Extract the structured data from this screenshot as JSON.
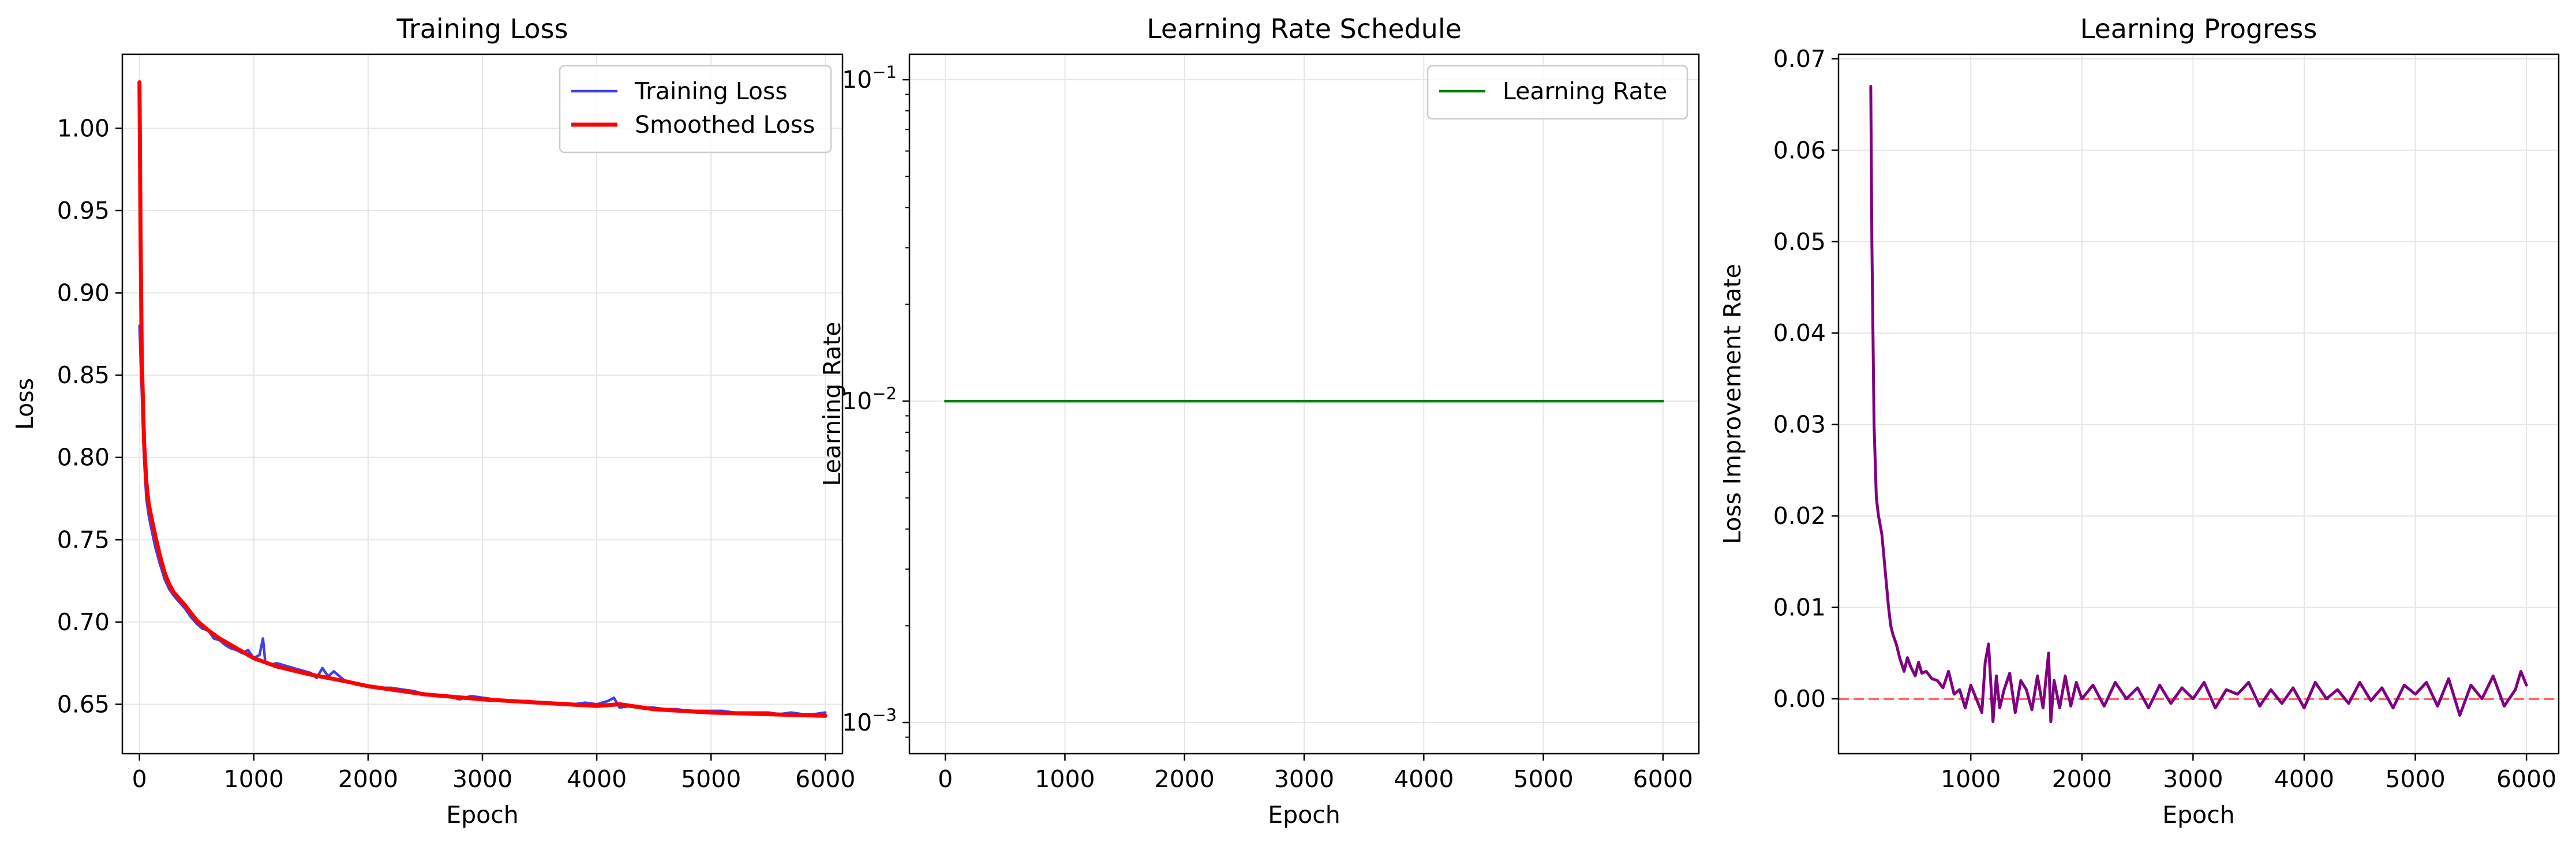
{
  "colors": {
    "training_loss": "#4040e8",
    "smoothed_loss": "#ff0000",
    "learning_rate": "#008000",
    "improvement": "#800080",
    "zero_line": "#ff6a6a",
    "grid": "#e6e6e6"
  },
  "chart_data": [
    {
      "type": "line",
      "title": "Training Loss",
      "xlabel": "Epoch",
      "ylabel": "Loss",
      "xlim": [
        -150,
        6150
      ],
      "ylim": [
        0.62,
        1.045
      ],
      "xticks": [
        0,
        1000,
        2000,
        3000,
        4000,
        5000,
        6000
      ],
      "xtick_labels": [
        "0",
        "1000",
        "2000",
        "3000",
        "4000",
        "5000",
        "6000"
      ],
      "yticks": [
        0.65,
        0.7,
        0.75,
        0.8,
        0.85,
        0.9,
        0.95,
        1.0
      ],
      "ytick_labels": [
        "0.65",
        "0.70",
        "0.75",
        "0.80",
        "0.85",
        "0.90",
        "0.95",
        "1.00"
      ],
      "grid": true,
      "legend": "top-right",
      "series": [
        {
          "name": "Training Loss",
          "x": [
            0,
            20,
            40,
            60,
            80,
            100,
            140,
            180,
            220,
            260,
            300,
            350,
            400,
            450,
            500,
            550,
            600,
            650,
            700,
            750,
            800,
            850,
            900,
            950,
            1000,
            1050,
            1080,
            1100,
            1150,
            1200,
            1300,
            1400,
            1500,
            1550,
            1600,
            1650,
            1700,
            1800,
            1900,
            2000,
            2100,
            2200,
            2300,
            2400,
            2500,
            2600,
            2700,
            2800,
            2900,
            3000,
            3100,
            3200,
            3300,
            3400,
            3500,
            3600,
            3700,
            3800,
            3900,
            4000,
            4100,
            4150,
            4200,
            4300,
            4400,
            4500,
            4600,
            4700,
            4800,
            4900,
            5000,
            5100,
            5200,
            5300,
            5400,
            5500,
            5600,
            5700,
            5800,
            5900,
            6000
          ],
          "y": [
            0.88,
            0.84,
            0.8,
            0.775,
            0.765,
            0.758,
            0.745,
            0.735,
            0.726,
            0.72,
            0.716,
            0.712,
            0.708,
            0.703,
            0.699,
            0.696,
            0.695,
            0.69,
            0.689,
            0.686,
            0.684,
            0.683,
            0.681,
            0.683,
            0.678,
            0.68,
            0.69,
            0.676,
            0.674,
            0.675,
            0.673,
            0.671,
            0.669,
            0.666,
            0.672,
            0.667,
            0.67,
            0.664,
            0.662,
            0.661,
            0.66,
            0.66,
            0.659,
            0.658,
            0.656,
            0.655,
            0.655,
            0.653,
            0.655,
            0.654,
            0.653,
            0.652,
            0.652,
            0.652,
            0.651,
            0.651,
            0.65,
            0.65,
            0.651,
            0.65,
            0.652,
            0.654,
            0.648,
            0.649,
            0.648,
            0.648,
            0.647,
            0.647,
            0.646,
            0.646,
            0.646,
            0.646,
            0.645,
            0.645,
            0.645,
            0.645,
            0.644,
            0.645,
            0.644,
            0.644,
            0.645
          ]
        },
        {
          "name": "Smoothed Loss",
          "x": [
            0,
            10,
            20,
            40,
            60,
            80,
            100,
            140,
            180,
            220,
            260,
            300,
            400,
            500,
            600,
            700,
            800,
            1000,
            1200,
            1500,
            1800,
            2000,
            2500,
            3000,
            3500,
            4000,
            4200,
            4500,
            5000,
            5500,
            6000
          ],
          "y": [
            1.028,
            0.93,
            0.86,
            0.81,
            0.785,
            0.772,
            0.765,
            0.752,
            0.74,
            0.73,
            0.723,
            0.718,
            0.71,
            0.701,
            0.695,
            0.69,
            0.686,
            0.678,
            0.673,
            0.668,
            0.664,
            0.661,
            0.656,
            0.653,
            0.651,
            0.649,
            0.65,
            0.647,
            0.645,
            0.644,
            0.643
          ]
        }
      ]
    },
    {
      "type": "line",
      "title": "Learning Rate Schedule",
      "xlabel": "Epoch",
      "ylabel": "Learning Rate",
      "scale_y": "log",
      "xlim": [
        -300,
        6300
      ],
      "ylim": [
        0.0008,
        0.12
      ],
      "xticks": [
        0,
        1000,
        2000,
        3000,
        4000,
        5000,
        6000
      ],
      "xtick_labels": [
        "0",
        "1000",
        "2000",
        "3000",
        "4000",
        "5000",
        "6000"
      ],
      "yticks": [
        0.001,
        0.01,
        0.1
      ],
      "ytick_labels": [
        "10",
        "10",
        "10"
      ],
      "ytick_exponents": [
        "−3",
        "−2",
        "−1"
      ],
      "grid": true,
      "legend": "top-right",
      "series": [
        {
          "name": "Learning Rate",
          "x": [
            0,
            6000
          ],
          "y": [
            0.01,
            0.01
          ]
        }
      ]
    },
    {
      "type": "line",
      "title": "Learning Progress",
      "xlabel": "Epoch",
      "ylabel": "Loss Improvement Rate",
      "xlim": [
        -190,
        6290
      ],
      "ylim": [
        -0.006,
        0.0705
      ],
      "xticks": [
        1000,
        2000,
        3000,
        4000,
        5000,
        6000
      ],
      "xtick_labels": [
        "1000",
        "2000",
        "3000",
        "4000",
        "5000",
        "6000"
      ],
      "yticks": [
        0.0,
        0.01,
        0.02,
        0.03,
        0.04,
        0.05,
        0.06,
        0.07
      ],
      "ytick_labels": [
        "0.00",
        "0.01",
        "0.02",
        "0.03",
        "0.04",
        "0.05",
        "0.06",
        "0.07"
      ],
      "grid": true,
      "reference_line": {
        "y": 0,
        "style": "dashed"
      },
      "series": [
        {
          "name": "Loss Improvement Rate",
          "x": [
            100,
            110,
            130,
            150,
            170,
            200,
            230,
            260,
            280,
            300,
            330,
            360,
            400,
            430,
            460,
            500,
            530,
            560,
            600,
            650,
            700,
            750,
            800,
            850,
            900,
            950,
            1000,
            1050,
            1100,
            1130,
            1160,
            1200,
            1230,
            1260,
            1300,
            1350,
            1400,
            1450,
            1500,
            1550,
            1600,
            1650,
            1700,
            1720,
            1750,
            1800,
            1850,
            1900,
            1950,
            2000,
            2100,
            2200,
            2300,
            2400,
            2500,
            2600,
            2700,
            2800,
            2900,
            3000,
            3100,
            3200,
            3300,
            3400,
            3500,
            3600,
            3700,
            3800,
            3900,
            4000,
            4100,
            4200,
            4300,
            4400,
            4500,
            4600,
            4700,
            4800,
            4900,
            5000,
            5100,
            5200,
            5300,
            5400,
            5500,
            5600,
            5700,
            5800,
            5900,
            5950,
            6000
          ],
          "y": [
            0.067,
            0.05,
            0.03,
            0.022,
            0.02,
            0.018,
            0.014,
            0.01,
            0.008,
            0.007,
            0.006,
            0.0045,
            0.003,
            0.0045,
            0.0035,
            0.0025,
            0.004,
            0.0028,
            0.003,
            0.0022,
            0.002,
            0.0012,
            0.003,
            0.0005,
            0.001,
            -0.001,
            0.0015,
            0.0,
            -0.0015,
            0.004,
            0.006,
            -0.0025,
            0.0025,
            -0.001,
            0.001,
            0.0028,
            -0.0015,
            0.002,
            0.001,
            -0.0012,
            0.0025,
            -0.001,
            0.005,
            -0.0025,
            0.002,
            -0.001,
            0.0025,
            -0.0008,
            0.0018,
            0.0,
            0.0015,
            -0.0008,
            0.0018,
            0.0,
            0.0012,
            -0.001,
            0.0015,
            -0.0005,
            0.0012,
            0.0,
            0.0018,
            -0.001,
            0.001,
            0.0005,
            0.0018,
            -0.0008,
            0.001,
            -0.0005,
            0.0012,
            -0.001,
            0.0018,
            0.0,
            0.001,
            -0.0005,
            0.0018,
            -0.0002,
            0.0012,
            -0.001,
            0.0015,
            0.0005,
            0.0018,
            -0.0008,
            0.0022,
            -0.0018,
            0.0015,
            0.0,
            0.0025,
            -0.0008,
            0.001,
            0.003,
            0.0015
          ]
        }
      ]
    }
  ]
}
